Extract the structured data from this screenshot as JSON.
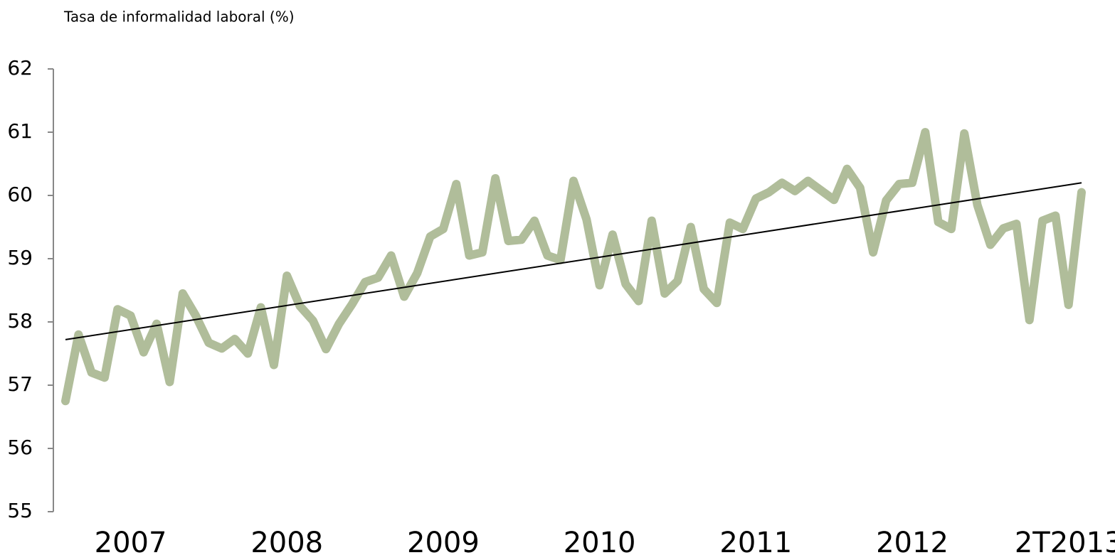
{
  "chart_data": {
    "type": "line",
    "title": "Tasa de informalidad laboral (%)",
    "categories": [
      null,
      null,
      null,
      null,
      null,
      "2007",
      null,
      null,
      null,
      null,
      null,
      null,
      null,
      null,
      null,
      null,
      null,
      "2008",
      null,
      null,
      null,
      null,
      null,
      null,
      null,
      null,
      null,
      null,
      null,
      "2009",
      null,
      null,
      null,
      null,
      null,
      null,
      null,
      null,
      null,
      null,
      null,
      "2010",
      null,
      null,
      null,
      null,
      null,
      null,
      null,
      null,
      null,
      null,
      null,
      "2011",
      null,
      null,
      null,
      null,
      null,
      null,
      null,
      null,
      null,
      null,
      null,
      "2012",
      null,
      null,
      null,
      null,
      null,
      null,
      null,
      null,
      null,
      null,
      null,
      "2T2013",
      null
    ],
    "series": [
      {
        "name": "Tasa de informalidad laboral",
        "color": "#b0bd9a",
        "values": [
          56.75,
          57.8,
          57.2,
          57.12,
          58.2,
          58.1,
          57.52,
          57.97,
          57.05,
          58.45,
          58.1,
          57.67,
          57.58,
          57.73,
          57.5,
          58.23,
          57.32,
          58.73,
          58.25,
          58.02,
          57.57,
          57.97,
          58.28,
          58.63,
          58.7,
          59.05,
          58.4,
          58.77,
          59.35,
          59.47,
          60.18,
          59.05,
          59.1,
          60.27,
          59.28,
          59.3,
          59.6,
          59.05,
          58.98,
          60.23,
          59.62,
          58.58,
          59.38,
          58.6,
          58.33,
          59.6,
          58.45,
          58.65,
          59.5,
          58.52,
          58.3,
          59.57,
          59.47,
          59.95,
          60.05,
          60.2,
          60.07,
          60.23,
          60.08,
          59.93,
          60.42,
          60.12,
          59.1,
          59.92,
          60.18,
          60.2,
          61.0,
          59.58,
          59.47,
          60.98,
          59.85,
          59.22,
          59.48,
          59.55,
          58.03,
          59.6,
          59.68,
          58.27,
          60.05
        ]
      }
    ],
    "trend": {
      "start": 57.72,
      "end": 60.2,
      "color": "#000000"
    },
    "ylim": [
      55,
      62
    ],
    "yticks": [
      55,
      56,
      57,
      58,
      59,
      60,
      61,
      62
    ],
    "grid": false
  }
}
